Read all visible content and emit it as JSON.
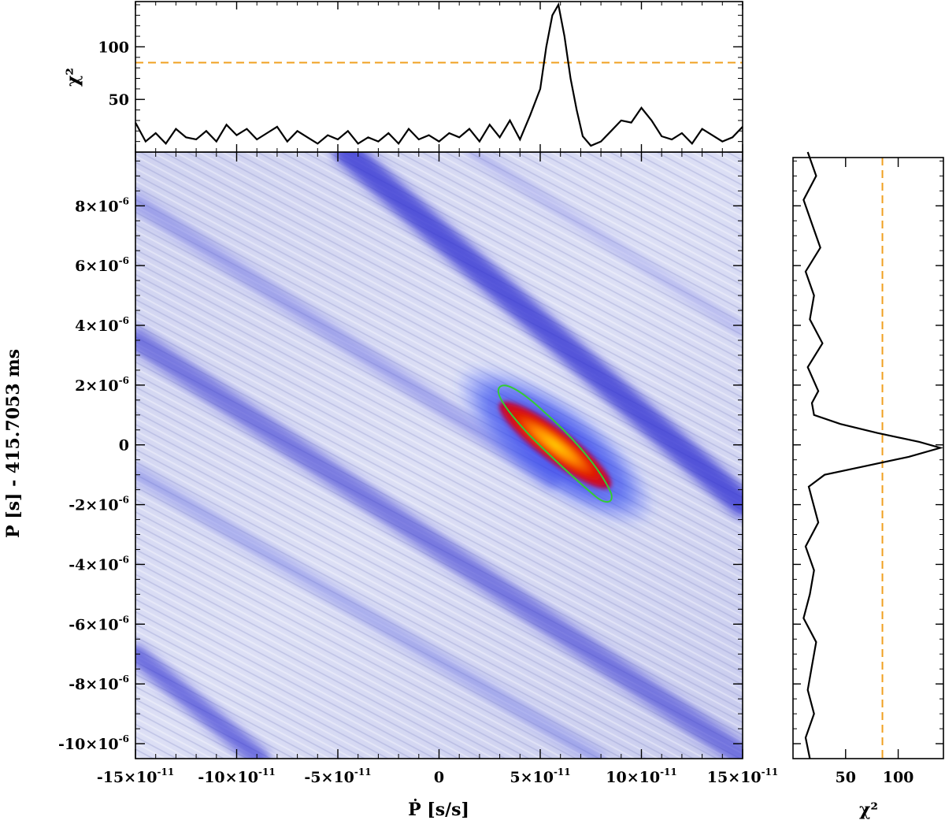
{
  "chart_data": [
    {
      "panel": "main",
      "type": "heatmap",
      "xlabel": "Ṗ [s/s]",
      "ylabel": "P [s] - 415.7053 ms",
      "xlim": [
        -1.5e-10,
        1.5e-10
      ],
      "ylim": [
        -1.05e-05,
        9.8e-06
      ],
      "x_ticks": [
        {
          "value": -1.5e-10,
          "mant": "-15",
          "exp": "-11"
        },
        {
          "value": -1e-10,
          "mant": "-10",
          "exp": "-11"
        },
        {
          "value": -5e-11,
          "mant": "-5",
          "exp": "-11"
        },
        {
          "value": 0,
          "mant": "0",
          "exp": ""
        },
        {
          "value": 5e-11,
          "mant": "5",
          "exp": "-11"
        },
        {
          "value": 1e-10,
          "mant": "10",
          "exp": "-11"
        },
        {
          "value": 1.5e-10,
          "mant": "15",
          "exp": "-11"
        }
      ],
      "y_ticks": [
        {
          "value": 8e-06,
          "mant": "8",
          "exp": "-6"
        },
        {
          "value": 6e-06,
          "mant": "6",
          "exp": "-6"
        },
        {
          "value": 4e-06,
          "mant": "4",
          "exp": "-6"
        },
        {
          "value": 2e-06,
          "mant": "2",
          "exp": "-6"
        },
        {
          "value": 0,
          "mant": "0",
          "exp": ""
        },
        {
          "value": -2e-06,
          "mant": "-2",
          "exp": "-6"
        },
        {
          "value": -4e-06,
          "mant": "-4",
          "exp": "-6"
        },
        {
          "value": -6e-06,
          "mant": "-6",
          "exp": "-6"
        },
        {
          "value": -8e-06,
          "mant": "-8",
          "exp": "-6"
        },
        {
          "value": -1e-05,
          "mant": "-10",
          "exp": "-6"
        }
      ],
      "peak": {
        "pdot": 6e-11,
        "p": 0
      },
      "contour_color": "#33cc33",
      "colors": {
        "background": "#d6d8f2",
        "band": "#2a2ad0",
        "peak": "#e02000",
        "peak_core": "#ffcc00"
      }
    },
    {
      "panel": "top",
      "type": "line",
      "ylabel": "χ²",
      "xlim": [
        -1.5e-10,
        1.5e-10
      ],
      "ylim": [
        0,
        143
      ],
      "y_ticks": [
        50,
        100
      ],
      "threshold": 85,
      "threshold_color": "#f0a020",
      "x": [
        -1.5e-10,
        -1.45e-10,
        -1.4e-10,
        -1.35e-10,
        -1.3e-10,
        -1.25e-10,
        -1.2e-10,
        -1.15e-10,
        -1.1e-10,
        -1.05e-10,
        -1e-10,
        -9.5e-11,
        -9e-11,
        -8.5e-11,
        -8e-11,
        -7.5e-11,
        -7e-11,
        -6.5e-11,
        -6e-11,
        -5.5e-11,
        -5e-11,
        -4.5e-11,
        -4e-11,
        -3.5e-11,
        -3e-11,
        -2.5e-11,
        -2e-11,
        -1.5e-11,
        -1e-11,
        -5e-12,
        0,
        5e-12,
        1e-11,
        1.5e-11,
        2e-11,
        2.5e-11,
        3e-11,
        3.5e-11,
        4e-11,
        4.5e-11,
        5e-11,
        5.3e-11,
        5.6e-11,
        5.9e-11,
        6.2e-11,
        6.5e-11,
        6.8e-11,
        7.1e-11,
        7.5e-11,
        8e-11,
        8.5e-11,
        9e-11,
        9.5e-11,
        1e-10,
        1.05e-10,
        1.1e-10,
        1.15e-10,
        1.2e-10,
        1.25e-10,
        1.3e-10,
        1.35e-10,
        1.4e-10,
        1.45e-10,
        1.5e-10
      ],
      "y": [
        28,
        10,
        18,
        8,
        22,
        14,
        12,
        20,
        10,
        26,
        16,
        22,
        12,
        18,
        24,
        10,
        20,
        14,
        8,
        16,
        12,
        20,
        8,
        14,
        10,
        18,
        8,
        22,
        12,
        16,
        10,
        18,
        14,
        22,
        10,
        26,
        14,
        30,
        12,
        35,
        60,
        100,
        130,
        140,
        110,
        70,
        40,
        15,
        6,
        10,
        20,
        30,
        28,
        42,
        30,
        15,
        12,
        18,
        8,
        22,
        16,
        10,
        14,
        24
      ]
    },
    {
      "panel": "right",
      "type": "line",
      "xlabel": "χ²",
      "xlim": [
        0,
        143
      ],
      "x_ticks": [
        50,
        100
      ],
      "threshold": 85,
      "threshold_color": "#f0a020",
      "y": [
        9.8e-06,
        9e-06,
        8.2e-06,
        7.4e-06,
        6.6e-06,
        5.8e-06,
        5e-06,
        4.2e-06,
        3.4e-06,
        2.6e-06,
        1.8e-06,
        1.4e-06,
        1e-06,
        7e-07,
        4e-07,
        1e-07,
        -1e-07,
        -4e-07,
        -7e-07,
        -1e-06,
        -1.4e-06,
        -1.8e-06,
        -2.6e-06,
        -3.4e-06,
        -4.2e-06,
        -5e-06,
        -5.8e-06,
        -6.6e-06,
        -7.4e-06,
        -8.2e-06,
        -9e-06,
        -9.8e-06,
        -1.05e-05
      ],
      "x": [
        14,
        22,
        10,
        18,
        26,
        12,
        20,
        16,
        28,
        14,
        24,
        18,
        20,
        45,
        80,
        120,
        140,
        110,
        70,
        30,
        15,
        18,
        24,
        12,
        20,
        16,
        10,
        22,
        18,
        14,
        20,
        12,
        16
      ]
    }
  ]
}
